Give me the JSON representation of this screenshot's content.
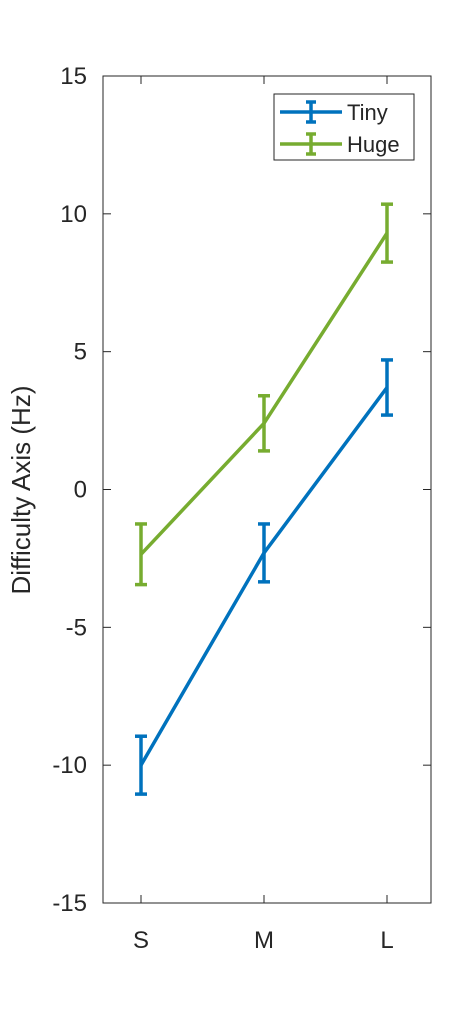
{
  "chart_data": {
    "type": "line",
    "title": "",
    "xlabel": "",
    "ylabel": "Difficulty Axis (Hz)",
    "categories": [
      "S",
      "M",
      "L"
    ],
    "ylim": [
      -15,
      15
    ],
    "yticks": [
      "15",
      "10",
      "5",
      "0",
      "-5",
      "-10",
      "-15"
    ],
    "grid": false,
    "legend_position": "top-right",
    "series": [
      {
        "name": "Tiny",
        "color": "#0072BD",
        "values": [
          -10.0,
          -2.3,
          3.7
        ],
        "error": [
          1.05,
          1.05,
          1.0
        ]
      },
      {
        "name": "Huge",
        "color": "#77AC30",
        "values": [
          -2.35,
          2.4,
          9.3
        ],
        "error": [
          1.1,
          1.0,
          1.05
        ]
      }
    ]
  }
}
